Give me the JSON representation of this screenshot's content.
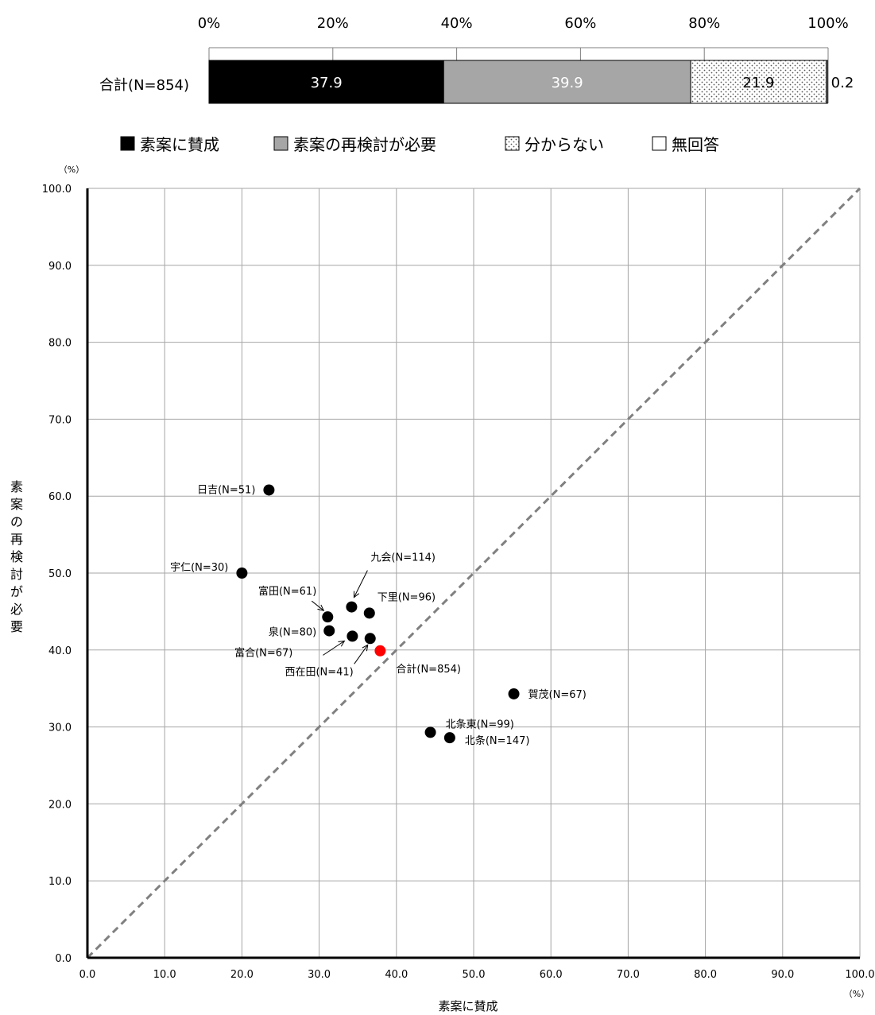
{
  "chart_data": [
    {
      "type": "bar",
      "orientation": "horizontal",
      "stacked": true,
      "axis_ticks": [
        "0%",
        "20%",
        "40%",
        "60%",
        "80%",
        "100%"
      ],
      "categories": [
        "合計(N=854)"
      ],
      "series": [
        {
          "name": "素案に賛成",
          "values": [
            37.9
          ],
          "label": "37.9",
          "color": "#000000"
        },
        {
          "name": "素案の再検討が必要",
          "values": [
            39.9
          ],
          "label": "39.9",
          "color": "#a6a6a6"
        },
        {
          "name": "分からない",
          "values": [
            21.9
          ],
          "label": "21.9",
          "color": "#ffffff",
          "pattern": "dots"
        },
        {
          "name": "無回答",
          "values": [
            0.2
          ],
          "label": "0.2",
          "color": "#ffffff"
        }
      ],
      "legend_symbols": [
        "■",
        "■",
        "⠿",
        "□"
      ],
      "legend_position": "bottom"
    },
    {
      "type": "scatter",
      "y_unit": "（%）",
      "x_unit": "（%）",
      "xlabel": "素案に賛成",
      "ylabel": "素案の再検討が必要",
      "xlim": [
        0,
        100
      ],
      "ylim": [
        0,
        100
      ],
      "x_ticks": [
        "0.0",
        "10.0",
        "20.0",
        "30.0",
        "40.0",
        "50.0",
        "60.0",
        "70.0",
        "80.0",
        "90.0",
        "100.0"
      ],
      "y_ticks": [
        "0.0",
        "10.0",
        "20.0",
        "30.0",
        "40.0",
        "50.0",
        "60.0",
        "70.0",
        "80.0",
        "90.0",
        "100.0"
      ],
      "grid": true,
      "reference_line": {
        "from": [
          0,
          0
        ],
        "to": [
          100,
          100
        ],
        "style": "dashed",
        "color": "#808080"
      },
      "points": [
        {
          "label": "日吉(N=51)",
          "x": 23.5,
          "y": 60.8,
          "color": "#000000"
        },
        {
          "label": "宇仁(N=30)",
          "x": 20.0,
          "y": 50.0,
          "color": "#000000"
        },
        {
          "label": "九会(N=114)",
          "x": 34.2,
          "y": 45.6,
          "color": "#000000"
        },
        {
          "label": "下里(N=96)",
          "x": 36.5,
          "y": 44.8,
          "color": "#000000"
        },
        {
          "label": "富田(N=61)",
          "x": 31.1,
          "y": 44.3,
          "color": "#000000"
        },
        {
          "label": "泉(N=80)",
          "x": 31.3,
          "y": 42.5,
          "color": "#000000"
        },
        {
          "label": "富合(N=67)",
          "x": 34.3,
          "y": 41.8,
          "color": "#000000"
        },
        {
          "label": "西在田(N=41)",
          "x": 36.6,
          "y": 41.5,
          "color": "#000000"
        },
        {
          "label": "合計(N=854)",
          "x": 37.9,
          "y": 39.9,
          "color": "#ff0000"
        },
        {
          "label": "賀茂(N=67)",
          "x": 55.2,
          "y": 34.3,
          "color": "#000000"
        },
        {
          "label": "北条東(N=99)",
          "x": 44.4,
          "y": 29.3,
          "color": "#000000"
        },
        {
          "label": "北条(N=147)",
          "x": 46.9,
          "y": 28.6,
          "color": "#000000"
        }
      ]
    }
  ]
}
